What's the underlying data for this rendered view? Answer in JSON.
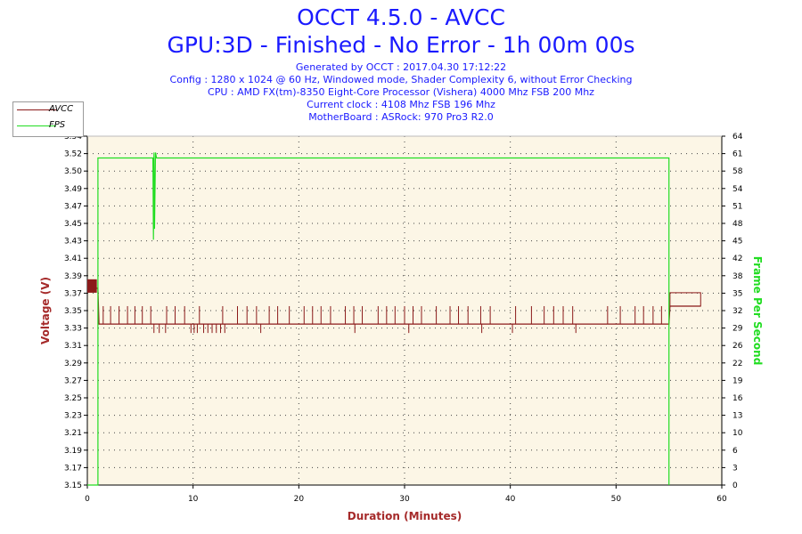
{
  "header": {
    "title": "OCCT 4.5.0 - AVCC",
    "subtitle": "GPU:3D - Finished - No Error - 1h 00m 00s",
    "info_lines": [
      "Generated by OCCT : 2017.04.30 17:12:22",
      "Config : 1280 x 1024 @ 60 Hz, Windowed mode, Shader Complexity 6, without Error Checking",
      "CPU : AMD FX(tm)-8350 Eight-Core Processor (Vishera) 4000 Mhz FSB 200 Mhz",
      "Current clock : 4108 Mhz FSB 196 Mhz",
      "MotherBoard : ASRock: 970 Pro3 R2.0"
    ]
  },
  "legend": {
    "items": [
      {
        "label": "AVCC",
        "color": "#8b1a1a"
      },
      {
        "label": "FPS",
        "color": "#22dd22"
      }
    ]
  },
  "chart_data": {
    "type": "line",
    "title": "OCCT 4.5.0 - AVCC",
    "xlabel": "Duration (Minutes)",
    "ylabel": "Voltage (V)",
    "y2label": "Frame Per Second",
    "xlim": [
      0,
      60
    ],
    "ylim": [
      3.15,
      3.54
    ],
    "y2lim": [
      0,
      64
    ],
    "x_ticks": [
      0,
      10,
      20,
      30,
      40,
      50,
      60
    ],
    "y_ticks": [
      "3.54",
      "3.52",
      "3.50",
      "3.49",
      "3.47",
      "3.45",
      "3.43",
      "3.41",
      "3.39",
      "3.37",
      "3.35",
      "3.33",
      "3.31",
      "3.29",
      "3.27",
      "3.25",
      "3.23",
      "3.21",
      "3.19",
      "3.17",
      "3.15"
    ],
    "y2_ticks": [
      64,
      61,
      58,
      54,
      51,
      48,
      45,
      42,
      38,
      35,
      32,
      29,
      26,
      22,
      19,
      16,
      13,
      10,
      6,
      3,
      0
    ],
    "grid": true,
    "legend_position": "top-left",
    "colors": {
      "plot_bg": "#fcf6e6",
      "voltage": "#8b1a1a",
      "fps": "#22dd22",
      "title": "#1a1aff",
      "axis_label": "#a52a2a"
    },
    "series": [
      {
        "name": "AVCC",
        "axis": "left",
        "baseline": 3.33,
        "x": [
          0,
          1,
          1.1,
          55,
          55.1,
          58
        ],
        "y": [
          3.37,
          3.37,
          3.33,
          3.33,
          3.35,
          3.35
        ],
        "spikes_up": [
          [
            1.5,
            3.35
          ],
          [
            2.2,
            3.35
          ],
          [
            3.0,
            3.35
          ],
          [
            3.8,
            3.35
          ],
          [
            4.5,
            3.35
          ],
          [
            5.2,
            3.35
          ],
          [
            6.0,
            3.35
          ],
          [
            7.5,
            3.35
          ],
          [
            8.3,
            3.35
          ],
          [
            9.2,
            3.35
          ],
          [
            10.6,
            3.35
          ],
          [
            12.8,
            3.35
          ],
          [
            14.2,
            3.35
          ],
          [
            15.1,
            3.35
          ],
          [
            16.0,
            3.35
          ],
          [
            17.2,
            3.35
          ],
          [
            18.0,
            3.35
          ],
          [
            19.1,
            3.35
          ],
          [
            20.5,
            3.35
          ],
          [
            21.3,
            3.35
          ],
          [
            22.1,
            3.35
          ],
          [
            23.0,
            3.35
          ],
          [
            24.4,
            3.35
          ],
          [
            25.2,
            3.35
          ],
          [
            26.0,
            3.35
          ],
          [
            27.5,
            3.35
          ],
          [
            28.3,
            3.35
          ],
          [
            29.1,
            3.35
          ],
          [
            30.0,
            3.35
          ],
          [
            30.8,
            3.35
          ],
          [
            31.6,
            3.35
          ],
          [
            33.0,
            3.35
          ],
          [
            34.3,
            3.35
          ],
          [
            35.1,
            3.35
          ],
          [
            36.0,
            3.35
          ],
          [
            37.2,
            3.35
          ],
          [
            38.1,
            3.35
          ],
          [
            40.5,
            3.35
          ],
          [
            42.0,
            3.35
          ],
          [
            43.2,
            3.35
          ],
          [
            44.1,
            3.35
          ],
          [
            45.0,
            3.35
          ],
          [
            45.9,
            3.35
          ],
          [
            49.2,
            3.35
          ],
          [
            50.4,
            3.35
          ],
          [
            51.8,
            3.35
          ],
          [
            52.6,
            3.35
          ],
          [
            53.5,
            3.35
          ],
          [
            54.3,
            3.35
          ]
        ],
        "spikes_down": [
          [
            6.3,
            3.32
          ],
          [
            6.8,
            3.32
          ],
          [
            7.4,
            3.32
          ],
          [
            9.8,
            3.32
          ],
          [
            10.1,
            3.32
          ],
          [
            10.4,
            3.32
          ],
          [
            11.0,
            3.32
          ],
          [
            11.4,
            3.32
          ],
          [
            11.8,
            3.32
          ],
          [
            12.2,
            3.32
          ],
          [
            12.6,
            3.32
          ],
          [
            13.0,
            3.32
          ],
          [
            16.4,
            3.32
          ],
          [
            25.3,
            3.32
          ],
          [
            30.4,
            3.32
          ],
          [
            37.3,
            3.32
          ],
          [
            40.2,
            3.32
          ],
          [
            46.2,
            3.32
          ]
        ]
      },
      {
        "name": "FPS",
        "axis": "right",
        "x": [
          0,
          1.0,
          1.0,
          6.2,
          6.25,
          6.3,
          6.35,
          6.45,
          6.55,
          55,
          55
        ],
        "y": [
          0,
          0,
          60,
          60,
          45,
          61,
          47,
          61,
          60,
          60,
          0
        ]
      }
    ]
  }
}
